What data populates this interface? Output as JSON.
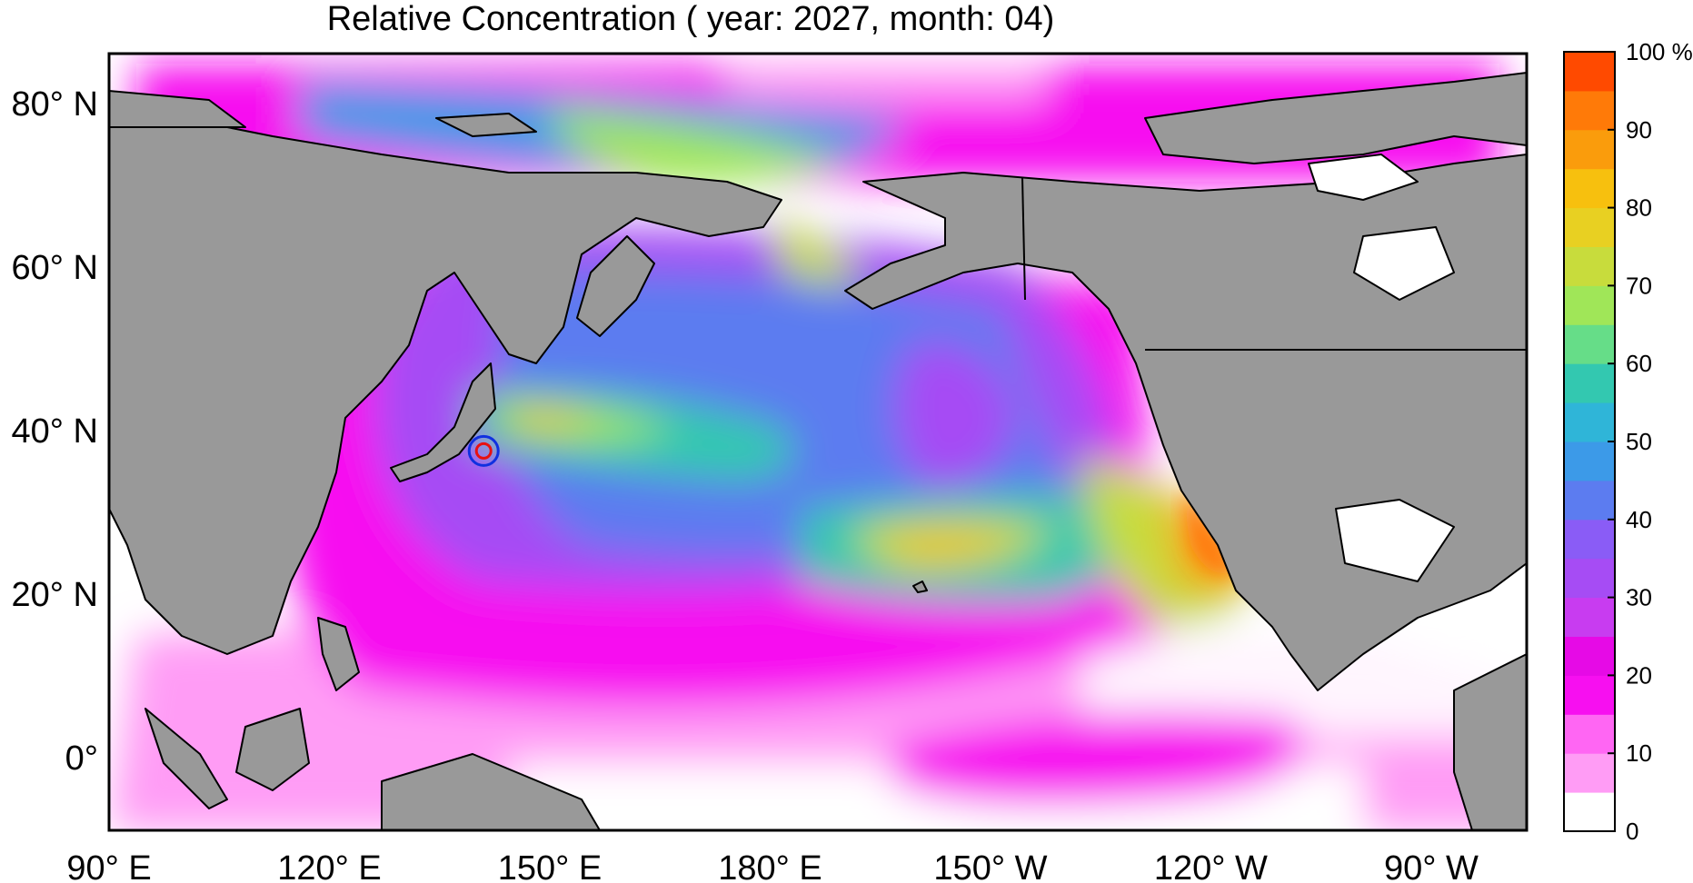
{
  "title": "Relative Concentration ( year: 2027, month: 04)",
  "map": {
    "lat_labels": [
      "80° N",
      "60° N",
      "40° N",
      "20° N",
      "0°"
    ],
    "lon_labels": [
      "90° E",
      "120° E",
      "150° E",
      "180° E",
      "150° W",
      "120° W",
      "90° W"
    ],
    "lat_range": [
      -9,
      86
    ],
    "lon_range": [
      90,
      283
    ],
    "source_marker": {
      "lon": 141.0,
      "lat": 37.4
    }
  },
  "colorbar": {
    "unit": "%",
    "tick_labels": [
      "100",
      "90",
      "80",
      "70",
      "60",
      "50",
      "40",
      "30",
      "20",
      "10",
      "0"
    ],
    "levels": [
      {
        "from": 0,
        "color": "#ffffff"
      },
      {
        "from": 5,
        "color": "#ff9cf5"
      },
      {
        "from": 10,
        "color": "#ff66f3"
      },
      {
        "from": 15,
        "color": "#f70ff0"
      },
      {
        "from": 20,
        "color": "#e60ae6"
      },
      {
        "from": 25,
        "color": "#c83cf0"
      },
      {
        "from": 30,
        "color": "#a64cf4"
      },
      {
        "from": 35,
        "color": "#8a5cf6"
      },
      {
        "from": 40,
        "color": "#5c7cf0"
      },
      {
        "from": 45,
        "color": "#3c9ae8"
      },
      {
        "from": 50,
        "color": "#2fb5d8"
      },
      {
        "from": 55,
        "color": "#33c8b0"
      },
      {
        "from": 60,
        "color": "#66dd88"
      },
      {
        "from": 65,
        "color": "#a0e658"
      },
      {
        "from": 70,
        "color": "#c8dc3c"
      },
      {
        "from": 75,
        "color": "#e8d022"
      },
      {
        "from": 80,
        "color": "#f7c00e"
      },
      {
        "from": 85,
        "color": "#fa9c0c"
      },
      {
        "from": 90,
        "color": "#ff7a08"
      },
      {
        "from": 95,
        "color": "#ff4a00"
      }
    ]
  }
}
